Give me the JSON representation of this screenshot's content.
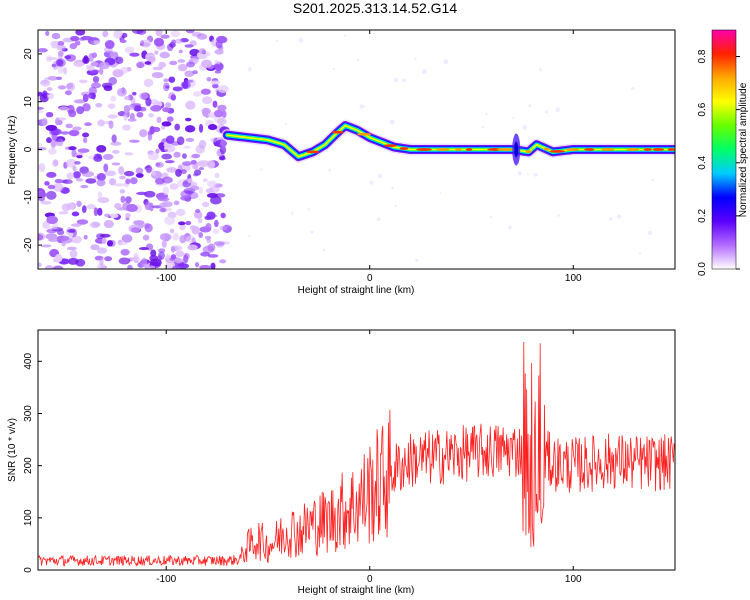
{
  "title": "S201.2025.313.14.52.G14",
  "chart_data": [
    {
      "type": "heatmap",
      "xlabel": "Height of straight line (km)",
      "ylabel": "Frequency (Hz)",
      "xlim": [
        -163,
        150
      ],
      "ylim": [
        -25,
        25
      ],
      "xticks": [
        -100,
        0,
        100
      ],
      "yticks": [
        -20,
        -10,
        0,
        10,
        20
      ],
      "colorbar": {
        "label": "Normalized spectral amplitude",
        "range": [
          0.0,
          0.9
        ],
        "ticks": [
          0.0,
          0.2,
          0.4,
          0.6,
          0.8
        ],
        "colors": [
          "#ffffff",
          "#b36bff",
          "#5a00ff",
          "#0000ff",
          "#00ccff",
          "#00ff66",
          "#66ff00",
          "#ffff00",
          "#ffaa00",
          "#ff2200",
          "#ff00aa"
        ]
      },
      "noise_region": {
        "x_range": [
          -163,
          -70
        ],
        "freq_range": [
          -25,
          25
        ]
      },
      "ridge": [
        {
          "x": -70,
          "f": 3.0
        },
        {
          "x": -60,
          "f": 2.5
        },
        {
          "x": -50,
          "f": 2.0
        },
        {
          "x": -42,
          "f": 1.0
        },
        {
          "x": -35,
          "f": -1.5
        },
        {
          "x": -28,
          "f": -0.5
        },
        {
          "x": -22,
          "f": 1.0
        },
        {
          "x": -16,
          "f": 3.5
        },
        {
          "x": -12,
          "f": 5.0
        },
        {
          "x": -6,
          "f": 4.0
        },
        {
          "x": 0,
          "f": 2.5
        },
        {
          "x": 6,
          "f": 1.5
        },
        {
          "x": 12,
          "f": 0.5
        },
        {
          "x": 20,
          "f": 0.0
        },
        {
          "x": 70,
          "f": 0.0
        },
        {
          "x": 78,
          "f": -0.5
        },
        {
          "x": 82,
          "f": 1.0
        },
        {
          "x": 90,
          "f": -0.5
        },
        {
          "x": 100,
          "f": 0.0
        },
        {
          "x": 150,
          "f": 0.0
        }
      ]
    },
    {
      "type": "line",
      "xlabel": "Height of straight line (km)",
      "ylabel": "SNR (10 * v/v)",
      "xlim": [
        -163,
        150
      ],
      "ylim": [
        0,
        460
      ],
      "xticks": [
        -100,
        0,
        100
      ],
      "yticks": [
        0,
        100,
        200,
        300,
        400
      ],
      "color": "#ff2020",
      "series": [
        {
          "name": "SNR",
          "x": [
            -163,
            -150,
            -140,
            -130,
            -120,
            -110,
            -100,
            -90,
            -80,
            -70,
            -64,
            -60,
            -55,
            -50,
            -45,
            -40,
            -35,
            -30,
            -25,
            -20,
            -15,
            -10,
            -5,
            0,
            5,
            10,
            15,
            20,
            30,
            40,
            50,
            60,
            70,
            75,
            78,
            80,
            82,
            85,
            90,
            100,
            110,
            120,
            130,
            140,
            150
          ],
          "y": [
            18,
            18,
            18,
            18,
            18,
            18,
            18,
            18,
            18,
            18,
            20,
            45,
            60,
            45,
            60,
            80,
            70,
            85,
            90,
            95,
            110,
            120,
            130,
            150,
            165,
            185,
            200,
            210,
            215,
            220,
            225,
            228,
            230,
            230,
            220,
            210,
            215,
            220,
            205,
            200,
            205,
            210,
            205,
            205,
            205
          ]
        }
      ],
      "spike": {
        "x_range": [
          75,
          86
        ],
        "peak": 455,
        "trough": 35
      }
    }
  ]
}
